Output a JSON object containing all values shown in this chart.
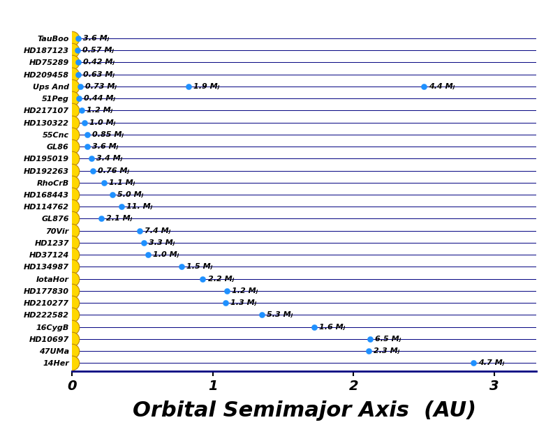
{
  "planets": [
    {
      "name": "TauBoo",
      "planets": [
        {
          "au": 0.046,
          "mass": "3.6 Mⱼ"
        }
      ]
    },
    {
      "name": "HD187123",
      "planets": [
        {
          "au": 0.042,
          "mass": "0.57 Mⱼ"
        }
      ]
    },
    {
      "name": "HD75289",
      "planets": [
        {
          "au": 0.046,
          "mass": "0.42 Mⱼ"
        }
      ]
    },
    {
      "name": "HD209458",
      "planets": [
        {
          "au": 0.045,
          "mass": "0.63 Mⱼ"
        }
      ]
    },
    {
      "name": "Ups And",
      "planets": [
        {
          "au": 0.059,
          "mass": "0.73 Mⱼ"
        },
        {
          "au": 0.83,
          "mass": "1.9 Mⱼ"
        },
        {
          "au": 2.5,
          "mass": "4.4 Mⱼ"
        }
      ]
    },
    {
      "name": "51Peg",
      "planets": [
        {
          "au": 0.052,
          "mass": "0.44 Mⱼ"
        }
      ]
    },
    {
      "name": "HD217107",
      "planets": [
        {
          "au": 0.071,
          "mass": "1.2 Mⱼ"
        }
      ]
    },
    {
      "name": "HD130322",
      "planets": [
        {
          "au": 0.088,
          "mass": "1.0 Mⱼ"
        }
      ]
    },
    {
      "name": "55Cnc",
      "planets": [
        {
          "au": 0.11,
          "mass": "0.85 Mⱼ"
        }
      ]
    },
    {
      "name": "GL86",
      "planets": [
        {
          "au": 0.11,
          "mass": "3.6 Mⱼ"
        }
      ]
    },
    {
      "name": "HD195019",
      "planets": [
        {
          "au": 0.14,
          "mass": "3.4 Mⱼ"
        }
      ]
    },
    {
      "name": "HD192263",
      "planets": [
        {
          "au": 0.15,
          "mass": "0.76 Mⱼ"
        }
      ]
    },
    {
      "name": "RhoCrB",
      "planets": [
        {
          "au": 0.23,
          "mass": "1.1 Mⱼ"
        }
      ]
    },
    {
      "name": "HD168443",
      "planets": [
        {
          "au": 0.29,
          "mass": "5.0 Mⱼ"
        }
      ]
    },
    {
      "name": "HD114762",
      "planets": [
        {
          "au": 0.35,
          "mass": "11. Mⱼ"
        }
      ]
    },
    {
      "name": "GL876",
      "planets": [
        {
          "au": 0.21,
          "mass": "2.1 Mⱼ"
        }
      ]
    },
    {
      "name": "70Vir",
      "planets": [
        {
          "au": 0.48,
          "mass": "7.4 Mⱼ"
        }
      ]
    },
    {
      "name": "HD1237",
      "planets": [
        {
          "au": 0.51,
          "mass": "3.3 Mⱼ"
        }
      ]
    },
    {
      "name": "HD37124",
      "planets": [
        {
          "au": 0.54,
          "mass": "1.0 Mⱼ"
        }
      ]
    },
    {
      "name": "HD134987",
      "planets": [
        {
          "au": 0.78,
          "mass": "1.5 Mⱼ"
        }
      ]
    },
    {
      "name": "IotaHor",
      "planets": [
        {
          "au": 0.93,
          "mass": "2.2 Mⱼ"
        }
      ]
    },
    {
      "name": "HD177830",
      "planets": [
        {
          "au": 1.1,
          "mass": "1.2 Mⱼ"
        }
      ]
    },
    {
      "name": "HD210277",
      "planets": [
        {
          "au": 1.09,
          "mass": "1.3 Mⱼ"
        }
      ]
    },
    {
      "name": "HD222582",
      "planets": [
        {
          "au": 1.35,
          "mass": "5.3 Mⱼ"
        }
      ]
    },
    {
      "name": "16CygB",
      "planets": [
        {
          "au": 1.72,
          "mass": "1.6 Mⱼ"
        }
      ]
    },
    {
      "name": "HD10697",
      "planets": [
        {
          "au": 2.12,
          "mass": "6.5 Mⱼ"
        }
      ]
    },
    {
      "name": "47UMa",
      "planets": [
        {
          "au": 2.11,
          "mass": "2.3 Mⱼ"
        }
      ]
    },
    {
      "name": "14Her",
      "planets": [
        {
          "au": 2.85,
          "mass": "4.7 Mⱼ"
        }
      ]
    }
  ],
  "star_color": "#FFD700",
  "star_edge_color": "#B8860B",
  "planet_color": "#1E90FF",
  "line_color": "#000080",
  "bg_color": "#FFFFFF",
  "xlabel": "Orbital Semimajor Axis  (AU)",
  "xlim": [
    0,
    3.3
  ],
  "xticks": [
    0,
    1,
    2,
    3
  ],
  "star_size": 220,
  "planet_size": 35,
  "label_fontsize": 8.0,
  "yname_fontsize": 8.0,
  "axis_label_fontsize": 22,
  "tick_fontsize": 14
}
